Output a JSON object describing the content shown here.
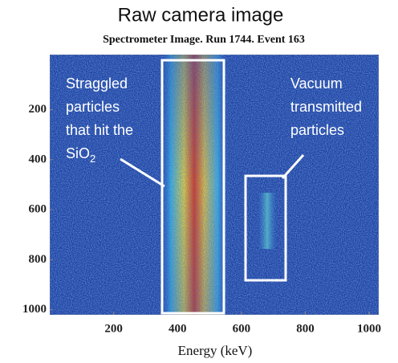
{
  "chart_data": {
    "type": "image",
    "title": "Raw camera image",
    "subtitle": "Spectrometer Image. Run 1744. Event 163",
    "x_label": "Energy (keV)",
    "xlim": [
      0,
      1030
    ],
    "xticks": [
      200,
      400,
      600,
      800,
      1000
    ],
    "ylim": [
      1020,
      -20
    ],
    "yticks": [
      200,
      400,
      600,
      800,
      1000
    ],
    "annotations": [
      {
        "lines": [
          "Straggled",
          "particles",
          "that hit the"
        ],
        "formula": {
          "text": "SiO",
          "subscript": "2"
        }
      },
      {
        "lines": [
          "Vacuum",
          "transmitted",
          "particles"
        ]
      }
    ]
  }
}
